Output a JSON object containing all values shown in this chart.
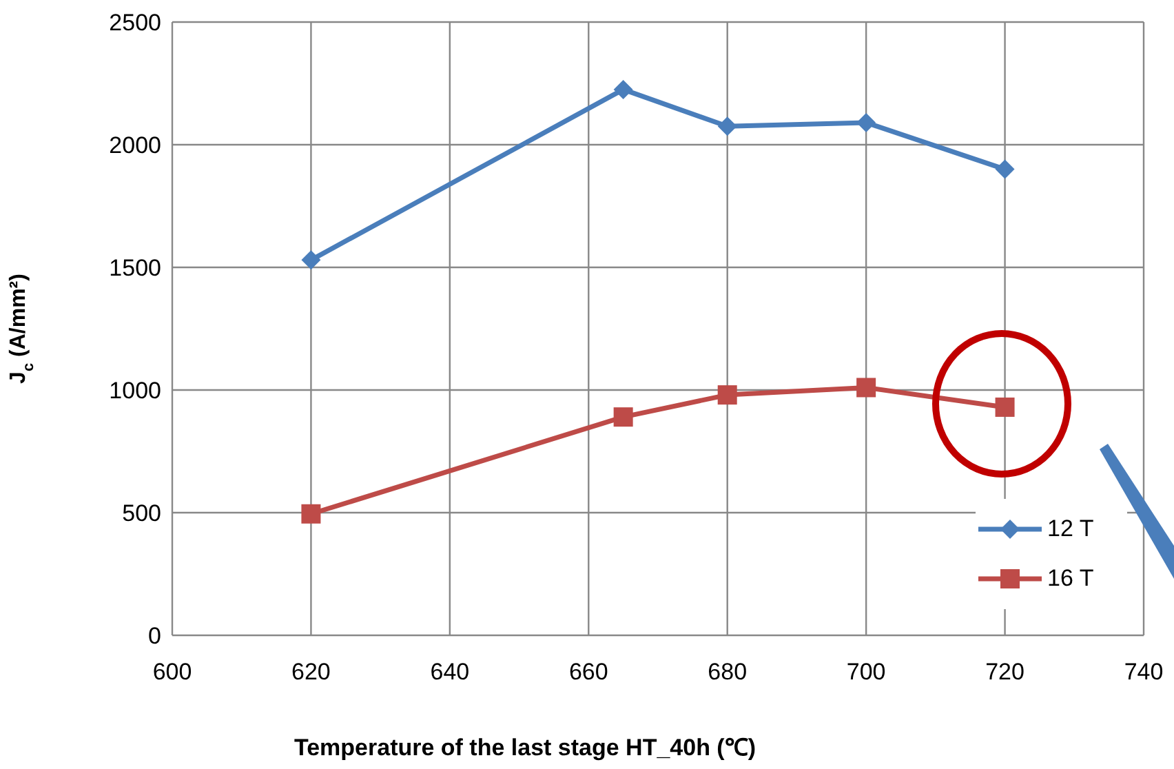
{
  "chart_data": {
    "type": "line",
    "xlabel": "Temperature of  the last stage HT_40h (℃)",
    "ylabel": "J$_{c}$ (A/mm²)",
    "x": [
      620,
      665,
      680,
      700,
      720
    ],
    "series": [
      {
        "name": "12 T",
        "color": "#4a7ebb",
        "marker": "diamond",
        "values": [
          1530,
          2225,
          2075,
          2090,
          1900
        ]
      },
      {
        "name": "16 T",
        "color": "#be4b48",
        "marker": "square",
        "values": [
          495,
          890,
          980,
          1010,
          930
        ]
      }
    ],
    "xlim": [
      600,
      740
    ],
    "xticks": [
      600,
      620,
      640,
      660,
      680,
      700,
      720,
      740
    ],
    "ylim": [
      0,
      2500
    ],
    "yticks": [
      0,
      500,
      1000,
      1500,
      2000,
      2500
    ],
    "grid": true,
    "legend": "bottom right",
    "line_style": "solid"
  }
}
